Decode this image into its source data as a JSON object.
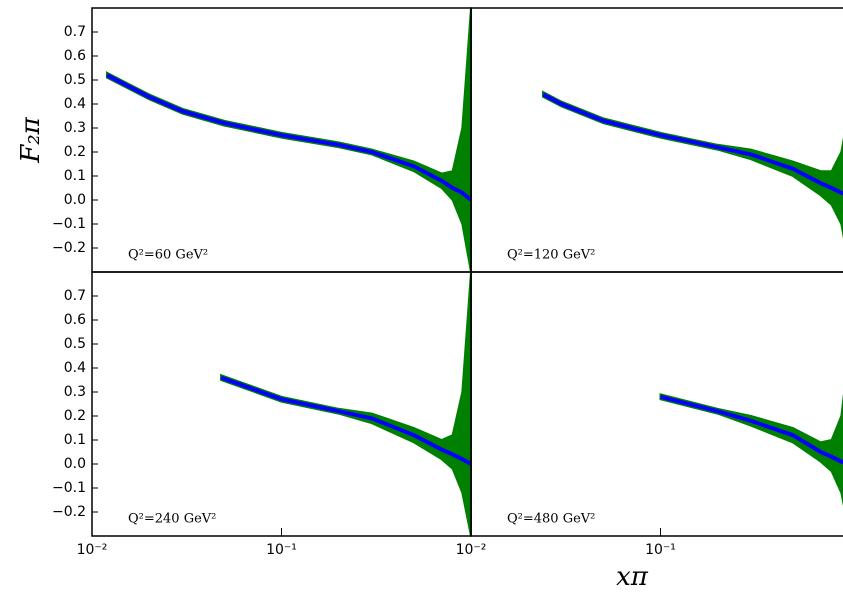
{
  "chart_data": [
    {
      "type": "line",
      "label": "Q²=60 GeV²",
      "xscale": "log",
      "xlim": [
        0.01,
        1
      ],
      "ylim": [
        -0.3,
        0.8
      ],
      "yticks": [
        {
          "value": -0.2,
          "label": "−0.2"
        },
        {
          "value": -0.1,
          "label": "−0.1"
        },
        {
          "value": 0,
          "label": "0.0"
        },
        0.1,
        0.2,
        0.3,
        0.4,
        0.5,
        0.6,
        0.7
      ],
      "x": [
        0.012,
        0.02,
        0.03,
        0.05,
        0.1,
        0.2,
        0.3,
        0.5,
        0.7,
        0.8,
        0.9,
        1.0
      ],
      "series": [
        {
          "color": "#0000ff",
          "band_color": "#008000",
          "values": [
            0.52,
            0.43,
            0.37,
            0.32,
            0.27,
            0.23,
            0.2,
            0.14,
            0.08,
            0.05,
            0.03,
            0.0
          ],
          "lower": [
            0.51,
            0.42,
            0.36,
            0.31,
            0.26,
            0.22,
            0.19,
            0.12,
            0.05,
            0.0,
            -0.1,
            -0.3
          ],
          "upper": [
            0.53,
            0.44,
            0.38,
            0.33,
            0.28,
            0.24,
            0.21,
            0.16,
            0.11,
            0.12,
            0.3,
            0.8
          ]
        }
      ]
    },
    {
      "type": "line",
      "label": "Q²=120 GeV²",
      "xscale": "log",
      "xlim": [
        0.01,
        1
      ],
      "ylim": [
        -0.3,
        0.8
      ],
      "x": [
        0.024,
        0.03,
        0.05,
        0.1,
        0.2,
        0.3,
        0.5,
        0.7,
        0.8,
        0.9,
        1.0
      ],
      "series": [
        {
          "color": "#0000ff",
          "band_color": "#008000",
          "values": [
            0.44,
            0.4,
            0.33,
            0.27,
            0.22,
            0.19,
            0.13,
            0.07,
            0.05,
            0.03,
            0.02
          ],
          "lower": [
            0.43,
            0.39,
            0.32,
            0.26,
            0.21,
            0.17,
            0.1,
            0.02,
            -0.02,
            -0.1,
            -0.3
          ],
          "upper": [
            0.45,
            0.41,
            0.34,
            0.28,
            0.23,
            0.21,
            0.16,
            0.12,
            0.12,
            0.2,
            0.4
          ]
        }
      ]
    },
    {
      "type": "line",
      "label": "Q²=240 GeV²",
      "xscale": "log",
      "xlim": [
        0.01,
        1
      ],
      "ylim": [
        -0.3,
        0.8
      ],
      "yticks": [
        {
          "value": -0.2,
          "label": "−0.2"
        },
        {
          "value": -0.1,
          "label": "−0.1"
        },
        {
          "value": 0,
          "label": "0.0"
        },
        0.1,
        0.2,
        0.3,
        0.4,
        0.5,
        0.6,
        0.7
      ],
      "xticks": [
        {
          "value": 0.01,
          "label": "10⁻²"
        },
        {
          "value": 0.1,
          "label": "10⁻¹"
        }
      ],
      "x": [
        0.048,
        0.1,
        0.2,
        0.3,
        0.5,
        0.7,
        0.8,
        0.9,
        1.0
      ],
      "series": [
        {
          "color": "#0000ff",
          "band_color": "#008000",
          "values": [
            0.36,
            0.27,
            0.22,
            0.19,
            0.12,
            0.06,
            0.04,
            0.02,
            0.0
          ],
          "lower": [
            0.35,
            0.26,
            0.21,
            0.17,
            0.09,
            0.02,
            -0.02,
            -0.12,
            -0.3
          ],
          "upper": [
            0.37,
            0.28,
            0.23,
            0.21,
            0.15,
            0.1,
            0.12,
            0.3,
            0.8
          ]
        }
      ]
    },
    {
      "type": "line",
      "label": "Q²=480 GeV²",
      "xscale": "log",
      "xlim": [
        0.01,
        1
      ],
      "ylim": [
        -0.3,
        0.8
      ],
      "xticks": [
        {
          "value": 0.01,
          "label": "10⁻²"
        },
        {
          "value": 0.1,
          "label": "10⁻¹"
        }
      ],
      "x": [
        0.1,
        0.2,
        0.3,
        0.5,
        0.7,
        0.8,
        0.9,
        1.0
      ],
      "series": [
        {
          "color": "#0000ff",
          "band_color": "#008000",
          "values": [
            0.28,
            0.22,
            0.18,
            0.12,
            0.05,
            0.03,
            0.01,
            0.0
          ],
          "lower": [
            0.27,
            0.21,
            0.16,
            0.09,
            0.01,
            -0.03,
            -0.12,
            -0.3
          ],
          "upper": [
            0.29,
            0.23,
            0.2,
            0.15,
            0.09,
            0.1,
            0.2,
            0.5
          ]
        }
      ]
    }
  ],
  "ylabel": "F₂π",
  "xlabel": "xπ"
}
